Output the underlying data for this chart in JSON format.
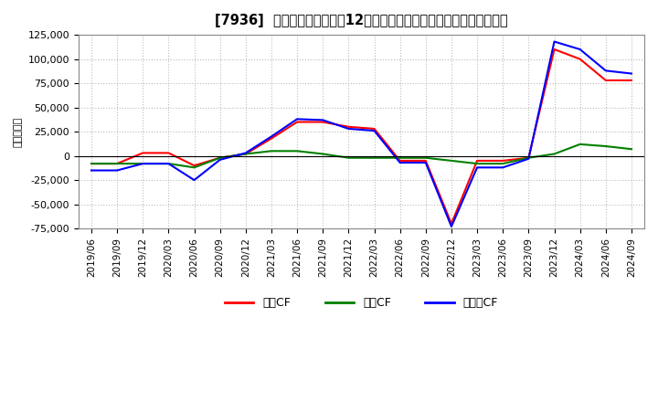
{
  "title": "[7936]  キャッシュフローの12か月移動合計の対前年同期増減額の推移",
  "ylabel": "（百万円）",
  "background_color": "#ffffff",
  "grid_color": "#bbbbbb",
  "ylim": [
    -75000,
    125000
  ],
  "yticks": [
    -75000,
    -50000,
    -25000,
    0,
    25000,
    50000,
    75000,
    100000,
    125000
  ],
  "x_labels": [
    "2019/06",
    "2019/09",
    "2019/12",
    "2020/03",
    "2020/06",
    "2020/09",
    "2020/12",
    "2021/03",
    "2021/06",
    "2021/09",
    "2021/12",
    "2022/03",
    "2022/06",
    "2022/09",
    "2022/12",
    "2023/03",
    "2023/06",
    "2023/09",
    "2023/12",
    "2024/03",
    "2024/06",
    "2024/09"
  ],
  "series_order": [
    "営業CF",
    "投資CF",
    "フリーCF"
  ],
  "series": {
    "営業CF": {
      "color": "#ff0000",
      "values": [
        -8000,
        -8000,
        3000,
        3000,
        -10000,
        -2000,
        2000,
        18000,
        35000,
        35000,
        30000,
        28000,
        -5000,
        -5000,
        -70000,
        -5000,
        -5000,
        -2000,
        110000,
        100000,
        78000,
        78000
      ]
    },
    "投資CF": {
      "color": "#008000",
      "values": [
        -8000,
        -8000,
        -8000,
        -8000,
        -12000,
        -2000,
        2000,
        5000,
        5000,
        2000,
        -2000,
        -2000,
        -2000,
        -2000,
        -5000,
        -8000,
        -8000,
        -2000,
        2000,
        12000,
        10000,
        7000
      ]
    },
    "フリーCF": {
      "color": "#0000ff",
      "values": [
        -15000,
        -15000,
        -8000,
        -8000,
        -25000,
        -4000,
        3000,
        20000,
        38000,
        37000,
        28000,
        26000,
        -7000,
        -7000,
        -73000,
        -12000,
        -12000,
        -3000,
        118000,
        110000,
        88000,
        85000
      ]
    }
  },
  "legend_labels": [
    "営業CF",
    "投資CF",
    "フリーCF"
  ],
  "legend_colors": [
    "#ff0000",
    "#008000",
    "#0000ff"
  ]
}
